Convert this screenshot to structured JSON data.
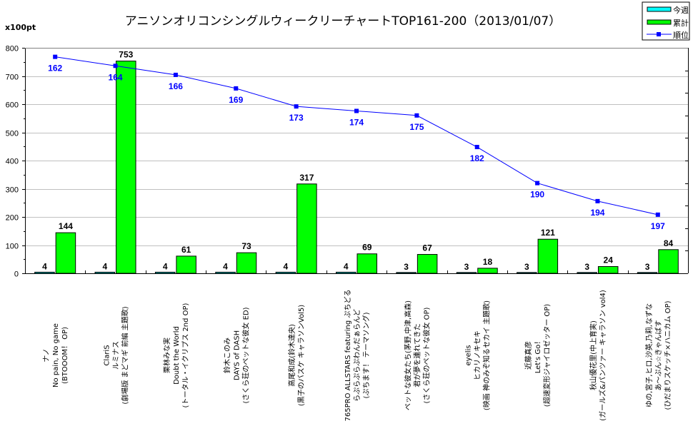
{
  "chart_data": {
    "type": "bar",
    "title": "アニソンオリコンシングルウィークリーチャートTOP161-200（2013/01/07）",
    "ylabel": "x100pt",
    "xlabel": "",
    "ylim": [
      0,
      800
    ],
    "yticks": [
      0,
      100,
      200,
      300,
      400,
      500,
      600,
      700,
      800
    ],
    "grid": true,
    "legend_position": "top-right",
    "rank_axis": {
      "range": [
        160,
        210
      ],
      "reversed": true,
      "labels_visible": false
    },
    "categories": [
      [
        "ナノ",
        "No pain, No game",
        "(BTOOOM！ OP)"
      ],
      [
        "ClariS",
        "ルミナス",
        "(劇場版 まどマギ 前編 主題歌)"
      ],
      [
        "栗林みな実",
        "Doubt the World",
        "(トータル・イクリプス 2nd OP)"
      ],
      [
        "鈴木このみ",
        "DAYS of DASH",
        "(さくら荘のペットな彼女 ED)"
      ],
      [
        "高尾和成(鈴木達央)",
        "(黒子のバスケ キャラソンVol5)"
      ],
      [
        "765PRO ALLSTARS featuring ぷちどる",
        "らぷらぷらぷわんだぁらんど",
        "(ぷちます！ テーマソング)"
      ],
      [
        "ペットな彼女たち(茅野,中津,高森)",
        "君が夢を連れてきた",
        "(さくら荘のペットな彼女 OP)"
      ],
      [
        "eyelis",
        "ヒカリノキセキ",
        "(映画 神のみぞ知るセカイ 主題歌)"
      ],
      [
        "近藤真彦",
        "Let's Go！",
        "(超速変形ジャイロゼッター OP)"
      ],
      [
        "秋山優花里(中上育実)",
        "(ガールズ&パンツァー キャラソン vol4)"
      ],
      [
        "ゆの,宮子,ヒロ,沙英,乃莉,なずな",
        "あ～ぷん☆きゃんばす",
        "(ひだまりスケッチ×ハニカム OP)"
      ]
    ],
    "series": [
      {
        "name": "今週",
        "type": "bar",
        "color": "#00ffff",
        "values": [
          4,
          4,
          4,
          4,
          4,
          4,
          3,
          3,
          3,
          3,
          3
        ]
      },
      {
        "name": "累計",
        "type": "bar",
        "color": "#00ff00",
        "values": [
          144,
          753,
          61,
          73,
          317,
          69,
          67,
          18,
          121,
          24,
          84
        ]
      },
      {
        "name": "順位",
        "type": "line",
        "color": "#0000ff",
        "axis": "rank",
        "values": [
          162,
          164,
          166,
          169,
          173,
          174,
          175,
          182,
          190,
          194,
          197
        ]
      }
    ]
  },
  "legend": {
    "items": [
      {
        "label": "今週",
        "kind": "bar",
        "color": "#00ffff"
      },
      {
        "label": "累計",
        "kind": "bar",
        "color": "#00ff00"
      },
      {
        "label": "順位",
        "kind": "line",
        "color": "#0000ff"
      }
    ]
  }
}
